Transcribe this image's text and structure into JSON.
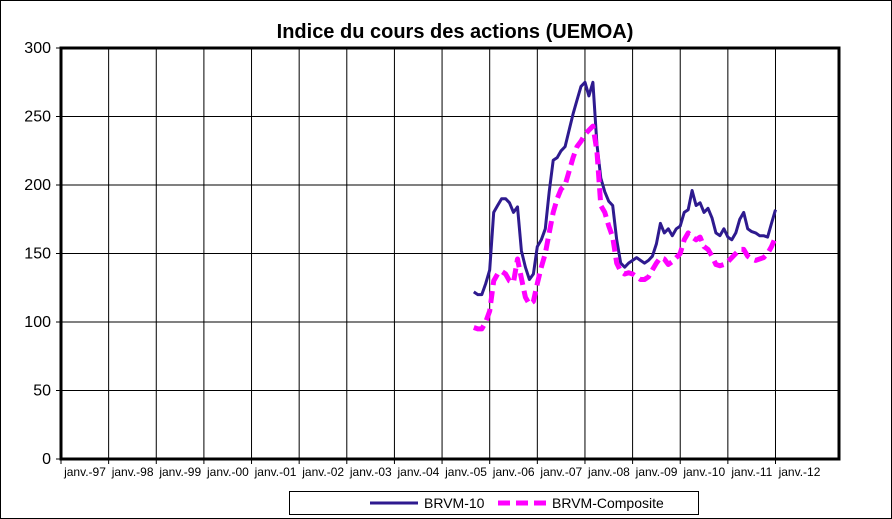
{
  "chart_data": {
    "type": "line",
    "title": "Indice du cours des actions  (UEMOA)",
    "xlabel": "",
    "ylabel": "",
    "ylim": [
      0,
      300
    ],
    "yticks": [
      "0",
      "50",
      "100",
      "150",
      "200",
      "250",
      "300"
    ],
    "xticks": [
      "janv.-97",
      "janv.-98",
      "janv.-99",
      "janv.-00",
      "janv.-01",
      "janv.-02",
      "janv.-03",
      "janv.-04",
      "janv.-05",
      "janv.-06",
      "janv.-07",
      "janv.-08",
      "janv.-09",
      "janv.-10",
      "janv.-11",
      "janv.-12"
    ],
    "xlim": [
      "1997-01",
      "2013-05"
    ],
    "grid": true,
    "legend_position": "bottom",
    "series": [
      {
        "name": "BRVM-10",
        "color": "#2e1a8f",
        "style": "solid",
        "points": [
          [
            "2005-09",
            122
          ],
          [
            "2005-10",
            120
          ],
          [
            "2005-11",
            120
          ],
          [
            "2005-12",
            128
          ],
          [
            "2006-01",
            138
          ],
          [
            "2006-02",
            180
          ],
          [
            "2006-03",
            185
          ],
          [
            "2006-04",
            190
          ],
          [
            "2006-05",
            190
          ],
          [
            "2006-06",
            187
          ],
          [
            "2006-07",
            180
          ],
          [
            "2006-08",
            184
          ],
          [
            "2006-09",
            152
          ],
          [
            "2006-10",
            140
          ],
          [
            "2006-11",
            131
          ],
          [
            "2006-12",
            135
          ],
          [
            "2007-01",
            155
          ],
          [
            "2007-02",
            160
          ],
          [
            "2007-03",
            168
          ],
          [
            "2007-04",
            195
          ],
          [
            "2007-05",
            218
          ],
          [
            "2007-06",
            220
          ],
          [
            "2007-07",
            225
          ],
          [
            "2007-08",
            228
          ],
          [
            "2007-09",
            240
          ],
          [
            "2007-10",
            252
          ],
          [
            "2007-11",
            262
          ],
          [
            "2007-12",
            272
          ],
          [
            "2008-01",
            275
          ],
          [
            "2008-02",
            265
          ],
          [
            "2008-03",
            275
          ],
          [
            "2008-04",
            230
          ],
          [
            "2008-05",
            205
          ],
          [
            "2008-06",
            195
          ],
          [
            "2008-07",
            188
          ],
          [
            "2008-08",
            185
          ],
          [
            "2008-09",
            160
          ],
          [
            "2008-10",
            143
          ],
          [
            "2008-11",
            140
          ],
          [
            "2008-12",
            143
          ],
          [
            "2009-01",
            145
          ],
          [
            "2009-02",
            147
          ],
          [
            "2009-03",
            145
          ],
          [
            "2009-04",
            143
          ],
          [
            "2009-05",
            145
          ],
          [
            "2009-06",
            148
          ],
          [
            "2009-07",
            157
          ],
          [
            "2009-08",
            172
          ],
          [
            "2009-09",
            165
          ],
          [
            "2009-10",
            168
          ],
          [
            "2009-11",
            163
          ],
          [
            "2009-12",
            168
          ],
          [
            "2010-01",
            170
          ],
          [
            "2010-02",
            180
          ],
          [
            "2010-03",
            182
          ],
          [
            "2010-04",
            196
          ],
          [
            "2010-05",
            185
          ],
          [
            "2010-06",
            187
          ],
          [
            "2010-07",
            180
          ],
          [
            "2010-08",
            183
          ],
          [
            "2010-09",
            176
          ],
          [
            "2010-10",
            165
          ],
          [
            "2010-11",
            163
          ],
          [
            "2010-12",
            168
          ],
          [
            "2011-01",
            162
          ],
          [
            "2011-02",
            160
          ],
          [
            "2011-03",
            165
          ],
          [
            "2011-04",
            175
          ],
          [
            "2011-05",
            180
          ],
          [
            "2011-06",
            168
          ],
          [
            "2011-07",
            166
          ],
          [
            "2011-08",
            165
          ],
          [
            "2011-09",
            163
          ],
          [
            "2011-10",
            163
          ],
          [
            "2011-11",
            162
          ],
          [
            "2011-12",
            172
          ],
          [
            "2012-01",
            182
          ]
        ]
      },
      {
        "name": "BRVM-Composite",
        "color": "#ff00ff",
        "style": "dashed",
        "points": [
          [
            "2005-09",
            96
          ],
          [
            "2005-10",
            95
          ],
          [
            "2005-11",
            95
          ],
          [
            "2005-12",
            100
          ],
          [
            "2006-01",
            108
          ],
          [
            "2006-02",
            130
          ],
          [
            "2006-03",
            135
          ],
          [
            "2006-04",
            137
          ],
          [
            "2006-05",
            135
          ],
          [
            "2006-06",
            130
          ],
          [
            "2006-07",
            129
          ],
          [
            "2006-08",
            146
          ],
          [
            "2006-09",
            132
          ],
          [
            "2006-10",
            118
          ],
          [
            "2006-11",
            113
          ],
          [
            "2006-12",
            115
          ],
          [
            "2007-01",
            128
          ],
          [
            "2007-02",
            140
          ],
          [
            "2007-03",
            150
          ],
          [
            "2007-04",
            165
          ],
          [
            "2007-05",
            180
          ],
          [
            "2007-06",
            190
          ],
          [
            "2007-07",
            197
          ],
          [
            "2007-08",
            200
          ],
          [
            "2007-09",
            210
          ],
          [
            "2007-10",
            220
          ],
          [
            "2007-11",
            228
          ],
          [
            "2007-12",
            232
          ],
          [
            "2008-01",
            237
          ],
          [
            "2008-02",
            240
          ],
          [
            "2008-03",
            243
          ],
          [
            "2008-04",
            225
          ],
          [
            "2008-05",
            185
          ],
          [
            "2008-06",
            180
          ],
          [
            "2008-07",
            170
          ],
          [
            "2008-08",
            162
          ],
          [
            "2008-09",
            143
          ],
          [
            "2008-10",
            137
          ],
          [
            "2008-11",
            135
          ],
          [
            "2008-12",
            136
          ],
          [
            "2009-01",
            135
          ],
          [
            "2009-02",
            133
          ],
          [
            "2009-03",
            131
          ],
          [
            "2009-04",
            131
          ],
          [
            "2009-05",
            133
          ],
          [
            "2009-06",
            138
          ],
          [
            "2009-07",
            143
          ],
          [
            "2009-08",
            147
          ],
          [
            "2009-09",
            146
          ],
          [
            "2009-10",
            142
          ],
          [
            "2009-11",
            144
          ],
          [
            "2009-12",
            147
          ],
          [
            "2010-01",
            150
          ],
          [
            "2010-02",
            160
          ],
          [
            "2010-03",
            165
          ],
          [
            "2010-04",
            162
          ],
          [
            "2010-05",
            160
          ],
          [
            "2010-06",
            162
          ],
          [
            "2010-07",
            155
          ],
          [
            "2010-08",
            153
          ],
          [
            "2010-09",
            148
          ],
          [
            "2010-10",
            142
          ],
          [
            "2010-11",
            141
          ],
          [
            "2010-12",
            142
          ],
          [
            "2011-01",
            144
          ],
          [
            "2011-02",
            147
          ],
          [
            "2011-03",
            150
          ],
          [
            "2011-04",
            153
          ],
          [
            "2011-05",
            153
          ],
          [
            "2011-06",
            148
          ],
          [
            "2011-07",
            146
          ],
          [
            "2011-08",
            145
          ],
          [
            "2011-09",
            146
          ],
          [
            "2011-10",
            147
          ],
          [
            "2011-11",
            150
          ],
          [
            "2011-12",
            155
          ],
          [
            "2012-01",
            162
          ]
        ]
      }
    ]
  }
}
